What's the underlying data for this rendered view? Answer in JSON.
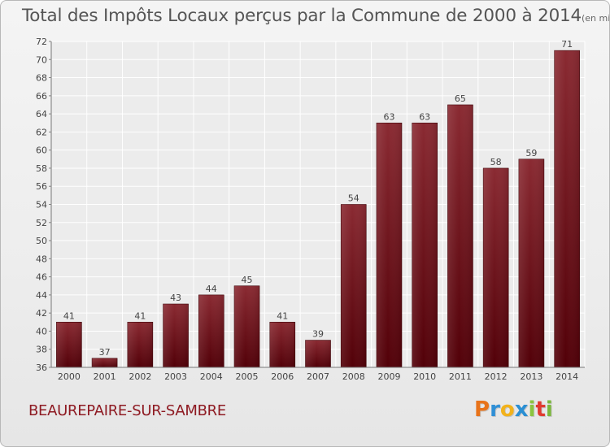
{
  "title": "Total des Impôts Locaux perçus par la Commune de 2000 à 2014",
  "unit": "(en milliers d'€)",
  "commune": "BEAUREPAIRE-SUR-SAMBRE",
  "logo": {
    "letters": [
      "P",
      "r",
      "o",
      "x",
      "i",
      "t",
      "i"
    ],
    "colors": [
      "#e8731a",
      "#2f8fd6",
      "#f2b21c",
      "#2a8fd3",
      "#8bc43f",
      "#e03a2f",
      "#7ab83a"
    ]
  },
  "chart_data": {
    "type": "bar",
    "title": "Total des Impôts Locaux perçus par la Commune de 2000 à 2014",
    "ylabel": "(en milliers d'€)",
    "xlabel": "",
    "categories": [
      "2000",
      "2001",
      "2002",
      "2003",
      "2004",
      "2005",
      "2006",
      "2007",
      "2008",
      "2009",
      "2010",
      "2011",
      "2012",
      "2013",
      "2014"
    ],
    "values": [
      41,
      37,
      41,
      43,
      44,
      45,
      41,
      39,
      54,
      63,
      63,
      65,
      58,
      59,
      71
    ],
    "ylim": [
      36,
      72
    ],
    "yticks": [
      36,
      38,
      40,
      42,
      44,
      46,
      48,
      50,
      52,
      54,
      56,
      58,
      60,
      62,
      64,
      66,
      68,
      70,
      72
    ],
    "grid": true,
    "bar_color": "#6e0f18"
  }
}
